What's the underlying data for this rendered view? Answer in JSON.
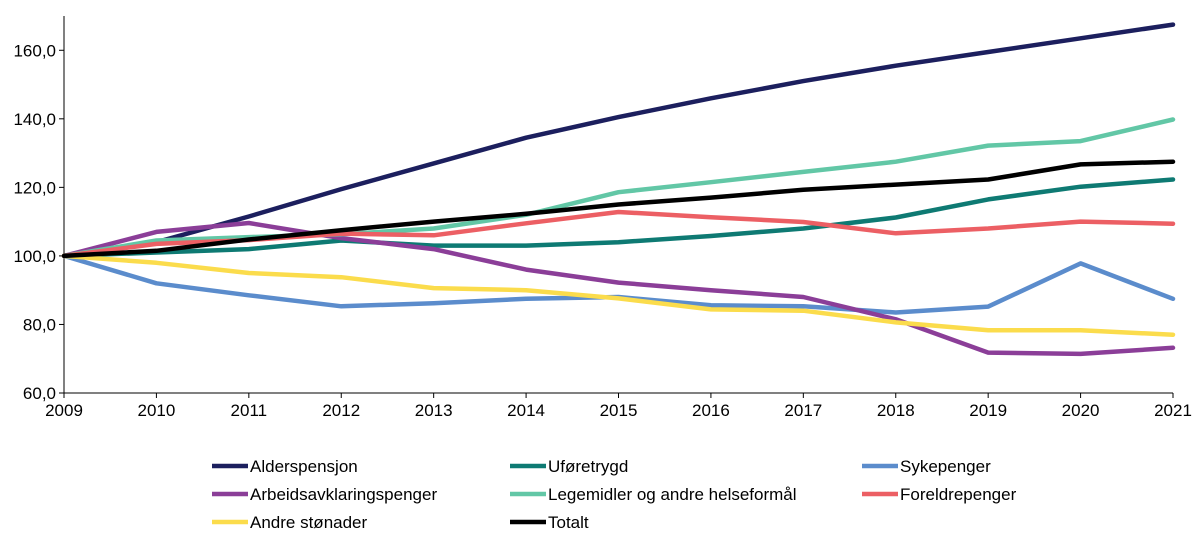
{
  "chart_data": {
    "type": "line",
    "title": "",
    "xlabel": "",
    "ylabel": "",
    "x": [
      2009,
      2010,
      2011,
      2012,
      2013,
      2014,
      2015,
      2016,
      2017,
      2018,
      2019,
      2020,
      2021
    ],
    "x_tick_labels": [
      "2009",
      "2010",
      "2011",
      "2012",
      "2013",
      "2014",
      "2015",
      "2016",
      "2017",
      "2018",
      "2019",
      "2020",
      "2021"
    ],
    "ylim": [
      60,
      170
    ],
    "y_ticks": [
      60,
      80,
      100,
      120,
      140,
      160
    ],
    "y_tick_labels": [
      "60,0",
      "80,0",
      "100,0",
      "120,0",
      "140,0",
      "160,0"
    ],
    "grid": false,
    "legend_position": "bottom",
    "series": [
      {
        "name": "Alderspensjon",
        "color": "#1c1f5e",
        "values": [
          100.0,
          104.0,
          111.5,
          119.5,
          127.0,
          134.5,
          140.5,
          146.0,
          151.0,
          155.5,
          159.5,
          163.5,
          167.5
        ]
      },
      {
        "name": "Uføretrygd",
        "color": "#0e7a73",
        "values": [
          100.0,
          101.0,
          102.0,
          104.5,
          103.0,
          103.0,
          104.0,
          105.8,
          108.0,
          111.2,
          116.5,
          120.2,
          122.3
        ]
      },
      {
        "name": "Sykepenger",
        "color": "#5b8ccc",
        "values": [
          100.0,
          92.0,
          88.5,
          85.3,
          86.2,
          87.5,
          88.0,
          85.6,
          85.3,
          83.5,
          85.2,
          97.8,
          87.5
        ]
      },
      {
        "name": "Arbeidsavklaringspenger",
        "color": "#8b3e98",
        "values": [
          100.0,
          107.0,
          109.6,
          105.2,
          102.0,
          96.0,
          92.2,
          90.0,
          88.0,
          81.5,
          71.8,
          71.4,
          73.2
        ]
      },
      {
        "name": "Legemidler og andre helseformål",
        "color": "#62c7a6",
        "values": [
          100.0,
          104.5,
          105.5,
          106.3,
          108.0,
          112.0,
          118.6,
          121.5,
          124.5,
          127.5,
          132.2,
          133.5,
          139.8
        ]
      },
      {
        "name": "Foreldrepenger",
        "color": "#ec5f64",
        "values": [
          100.0,
          103.5,
          104.6,
          106.5,
          106.0,
          109.5,
          112.8,
          111.3,
          109.9,
          106.6,
          108.0,
          110.0,
          109.4
        ]
      },
      {
        "name": "Andre stønader",
        "color": "#fbdc4c",
        "values": [
          100.0,
          98.0,
          95.0,
          93.8,
          90.6,
          90.0,
          87.6,
          84.4,
          84.0,
          80.6,
          78.3,
          78.3,
          77.0
        ]
      },
      {
        "name": "Totalt",
        "color": "#000000",
        "values": [
          100.0,
          101.5,
          104.8,
          107.5,
          110.0,
          112.3,
          115.0,
          117.0,
          119.3,
          120.8,
          122.3,
          126.7,
          127.5
        ]
      }
    ]
  }
}
